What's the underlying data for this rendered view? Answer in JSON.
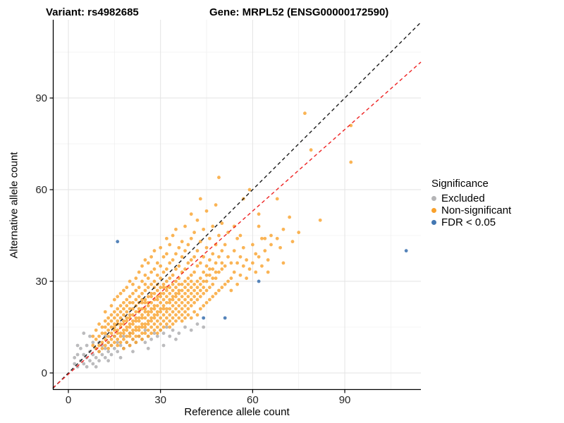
{
  "titles": {
    "variant": "Variant: rs4982685",
    "gene": "Gene: MRPL52 (ENSG00000172590)"
  },
  "axes": {
    "x_label": "Reference allele count",
    "y_label": "Alternative allele count",
    "x_major_ticks": [
      0,
      30,
      60,
      90
    ],
    "y_major_ticks": [
      0,
      30,
      60,
      90
    ],
    "x_minor_gridlines": [
      15,
      45,
      75,
      105
    ],
    "y_minor_gridlines": [
      15,
      45,
      75,
      105
    ]
  },
  "colors": {
    "excluded": "#b4b4b6",
    "non_significant": "#f9a12b",
    "fdr": "#4377b2",
    "identity_line": "#1a1a1a",
    "fit_line": "#ee2222",
    "grid_major": "#e3e3e3",
    "grid_minor": "#f0f0f0",
    "axis_line": "#000000",
    "tick_label": "#262626"
  },
  "chart_data": {
    "type": "scatter",
    "title_left": "Variant: rs4982685",
    "title_right": "Gene: MRPL52 (ENSG00000172590)",
    "xlabel": "Reference allele count",
    "ylabel": "Alternative allele count",
    "xlim": [
      -5,
      115
    ],
    "ylim": [
      -5,
      115
    ],
    "grid": "on",
    "legend_position": "right",
    "legend_title": "Significance",
    "lines": [
      {
        "name": "identity",
        "color": "#1a1a1a",
        "dash": true,
        "slope": 1,
        "intercept": 0
      },
      {
        "name": "fit",
        "color": "#ee2222",
        "dash": true,
        "slope": 0.89,
        "intercept": -0.4
      }
    ],
    "series": [
      {
        "name": "Excluded",
        "color": "#b4b4b6",
        "points": [
          [
            2,
            3
          ],
          [
            2,
            5
          ],
          [
            3,
            2
          ],
          [
            3,
            6
          ],
          [
            3,
            9
          ],
          [
            4,
            4
          ],
          [
            4,
            8
          ],
          [
            5,
            3
          ],
          [
            5,
            6
          ],
          [
            5,
            13
          ],
          [
            6,
            2
          ],
          [
            6,
            5
          ],
          [
            6,
            9
          ],
          [
            7,
            4
          ],
          [
            7,
            7
          ],
          [
            7,
            12
          ],
          [
            8,
            3
          ],
          [
            8,
            6
          ],
          [
            8,
            10
          ],
          [
            9,
            2
          ],
          [
            9,
            5
          ],
          [
            9,
            8
          ],
          [
            10,
            4
          ],
          [
            10,
            7
          ],
          [
            10,
            10
          ],
          [
            11,
            6
          ],
          [
            11,
            9
          ],
          [
            12,
            5
          ],
          [
            12,
            8
          ],
          [
            12,
            12
          ],
          [
            13,
            4
          ],
          [
            13,
            7
          ],
          [
            13,
            10
          ],
          [
            14,
            6
          ],
          [
            14,
            9
          ],
          [
            15,
            8
          ],
          [
            15,
            12
          ],
          [
            16,
            7
          ],
          [
            16,
            10
          ],
          [
            17,
            5
          ],
          [
            17,
            9
          ],
          [
            18,
            8
          ],
          [
            18,
            12
          ],
          [
            19,
            10
          ],
          [
            20,
            9
          ],
          [
            20,
            13
          ],
          [
            21,
            7
          ],
          [
            21,
            11
          ],
          [
            22,
            10
          ],
          [
            23,
            12
          ],
          [
            24,
            11
          ],
          [
            25,
            10
          ],
          [
            25,
            14
          ],
          [
            26,
            8
          ],
          [
            26,
            12
          ],
          [
            27,
            11
          ],
          [
            28,
            13
          ],
          [
            29,
            12
          ],
          [
            30,
            14
          ],
          [
            31,
            9
          ],
          [
            31,
            13
          ],
          [
            32,
            15
          ],
          [
            33,
            12
          ],
          [
            34,
            14
          ],
          [
            35,
            11
          ],
          [
            36,
            13
          ],
          [
            38,
            15
          ],
          [
            40,
            14
          ],
          [
            42,
            16
          ],
          [
            44,
            15
          ]
        ]
      },
      {
        "name": "Non-significant",
        "color": "#f9a12b",
        "columns": [
          [
            8,
            [
              9,
              12
            ]
          ],
          [
            9,
            [
              8,
              11,
              14
            ]
          ],
          [
            10,
            [
              7,
              9,
              12,
              16
            ]
          ],
          [
            11,
            [
              8,
              10,
              13,
              15
            ]
          ],
          [
            12,
            [
              9,
              11,
              13,
              15,
              17,
              20
            ]
          ],
          [
            13,
            [
              8,
              10,
              12,
              14,
              16,
              18
            ]
          ],
          [
            14,
            [
              9,
              11,
              13,
              15,
              17,
              19,
              22
            ]
          ],
          [
            15,
            [
              10,
              12,
              14,
              15,
              16,
              18,
              20,
              24
            ]
          ],
          [
            16,
            [
              9,
              11,
              13,
              14,
              16,
              17,
              19,
              21,
              25
            ]
          ],
          [
            17,
            [
              10,
              12,
              13,
              15,
              16,
              18,
              20,
              22,
              26
            ]
          ],
          [
            18,
            [
              8,
              11,
              13,
              14,
              16,
              17,
              19,
              21,
              23,
              27
            ]
          ],
          [
            19,
            [
              10,
              12,
              14,
              15,
              17,
              18,
              20,
              22,
              24,
              28
            ]
          ],
          [
            20,
            [
              9,
              12,
              13,
              15,
              16,
              18,
              19,
              21,
              23,
              25,
              30
            ]
          ],
          [
            21,
            [
              11,
              13,
              14,
              16,
              17,
              19,
              21,
              23,
              26,
              29
            ]
          ],
          [
            22,
            [
              10,
              12,
              14,
              15,
              17,
              18,
              20,
              22,
              24,
              27,
              31
            ]
          ],
          [
            23,
            [
              12,
              14,
              15,
              17,
              18,
              20,
              21,
              23,
              25,
              28,
              33
            ]
          ],
          [
            24,
            [
              11,
              13,
              15,
              16,
              18,
              19,
              21,
              23,
              24,
              26,
              30,
              35
            ]
          ],
          [
            25,
            [
              13,
              15,
              16,
              18,
              20,
              21,
              23,
              24,
              27,
              29,
              32,
              37
            ]
          ],
          [
            26,
            [
              12,
              14,
              16,
              17,
              19,
              20,
              22,
              23,
              25,
              28,
              31,
              36
            ]
          ],
          [
            27,
            [
              13,
              15,
              17,
              18,
              20,
              21,
              23,
              25,
              26,
              29,
              33,
              38
            ]
          ],
          [
            28,
            [
              14,
              16,
              18,
              19,
              21,
              22,
              24,
              26,
              28,
              30,
              34,
              40
            ]
          ],
          [
            29,
            [
              13,
              15,
              17,
              19,
              20,
              22,
              24,
              25,
              27,
              29,
              32,
              36
            ]
          ],
          [
            30,
            [
              14,
              16,
              18,
              20,
              21,
              23,
              25,
              26,
              28,
              31,
              35,
              41
            ]
          ],
          [
            31,
            [
              15,
              17,
              19,
              21,
              22,
              24,
              26,
              28,
              29,
              33,
              38
            ]
          ],
          [
            32,
            [
              16,
              18,
              20,
              21,
              23,
              25,
              27,
              28,
              30,
              34,
              39,
              44
            ]
          ],
          [
            33,
            [
              15,
              17,
              19,
              21,
              23,
              24,
              26,
              28,
              31,
              36,
              42
            ]
          ],
          [
            34,
            [
              16,
              18,
              20,
              22,
              24,
              25,
              27,
              29,
              32,
              37,
              45
            ]
          ],
          [
            35,
            [
              17,
              19,
              21,
              23,
              25,
              26,
              28,
              30,
              34,
              39,
              47
            ]
          ],
          [
            36,
            [
              18,
              20,
              22,
              24,
              26,
              27,
              29,
              31,
              35,
              41
            ]
          ],
          [
            37,
            [
              17,
              19,
              21,
              23,
              25,
              27,
              29,
              33,
              38,
              43
            ]
          ],
          [
            38,
            [
              18,
              20,
              22,
              24,
              26,
              28,
              30,
              34,
              40,
              48
            ]
          ],
          [
            39,
            [
              19,
              21,
              23,
              25,
              27,
              29,
              31,
              36,
              42
            ]
          ],
          [
            40,
            [
              18,
              22,
              24,
              26,
              28,
              30,
              32,
              37,
              44,
              52
            ]
          ],
          [
            41,
            [
              20,
              23,
              25,
              27,
              29,
              33,
              38,
              46
            ]
          ],
          [
            42,
            [
              19,
              24,
              26,
              28,
              30,
              35,
              40,
              50
            ]
          ],
          [
            43,
            [
              21,
              25,
              27,
              29,
              31,
              36,
              43,
              57
            ]
          ],
          [
            44,
            [
              22,
              26,
              28,
              30,
              33,
              38,
              47
            ]
          ],
          [
            45,
            [
              23,
              27,
              30,
              32,
              35,
              41,
              53
            ]
          ],
          [
            46,
            [
              24,
              28,
              32,
              34,
              37,
              44
            ]
          ],
          [
            47,
            [
              25,
              29,
              31,
              34,
              39,
              48
            ]
          ],
          [
            48,
            [
              26,
              31,
              33,
              36,
              42,
              55
            ]
          ],
          [
            49,
            [
              27,
              33,
              38,
              45,
              64
            ]
          ],
          [
            50,
            [
              28,
              34,
              36,
              40,
              49
            ]
          ],
          [
            51,
            [
              29,
              35,
              42
            ]
          ],
          [
            52,
            [
              30,
              38,
              46
            ]
          ],
          [
            53,
            [
              27,
              31,
              36
            ]
          ],
          [
            54,
            [
              33,
              40,
              48
            ]
          ],
          [
            55,
            [
              29,
              36,
              44
            ]
          ],
          [
            56,
            [
              32,
              38,
              45
            ]
          ],
          [
            57,
            [
              35,
              41,
              57
            ]
          ],
          [
            58,
            [
              31,
              37
            ]
          ],
          [
            59,
            [
              34,
              60
            ]
          ],
          [
            60,
            [
              36,
              42
            ]
          ],
          [
            61,
            [
              33,
              39
            ]
          ],
          [
            62,
            [
              38,
              48,
              52
            ]
          ],
          [
            63,
            [
              35,
              44
            ]
          ],
          [
            64,
            [
              40,
              44
            ]
          ],
          [
            65,
            [
              33,
              37
            ]
          ],
          [
            66,
            [
              42,
              45
            ]
          ],
          [
            68,
            [
              44,
              57
            ]
          ],
          [
            69,
            [
              41
            ]
          ],
          [
            70,
            [
              36,
              47
            ]
          ],
          [
            72,
            [
              51
            ]
          ],
          [
            73,
            [
              43
            ]
          ],
          [
            75,
            [
              46
            ]
          ],
          [
            77,
            [
              85
            ]
          ],
          [
            79,
            [
              73
            ]
          ],
          [
            82,
            [
              50
            ]
          ],
          [
            92,
            [
              69,
              81
            ]
          ]
        ]
      },
      {
        "name": "FDR < 0.05",
        "color": "#4377b2",
        "points": [
          [
            16,
            43
          ],
          [
            44,
            18
          ],
          [
            51,
            18
          ],
          [
            62,
            30
          ],
          [
            110,
            40
          ]
        ]
      }
    ]
  },
  "legend": {
    "title": "Significance",
    "items": [
      {
        "label": "Excluded"
      },
      {
        "label": "Non-significant"
      },
      {
        "label": "FDR < 0.05"
      }
    ]
  }
}
